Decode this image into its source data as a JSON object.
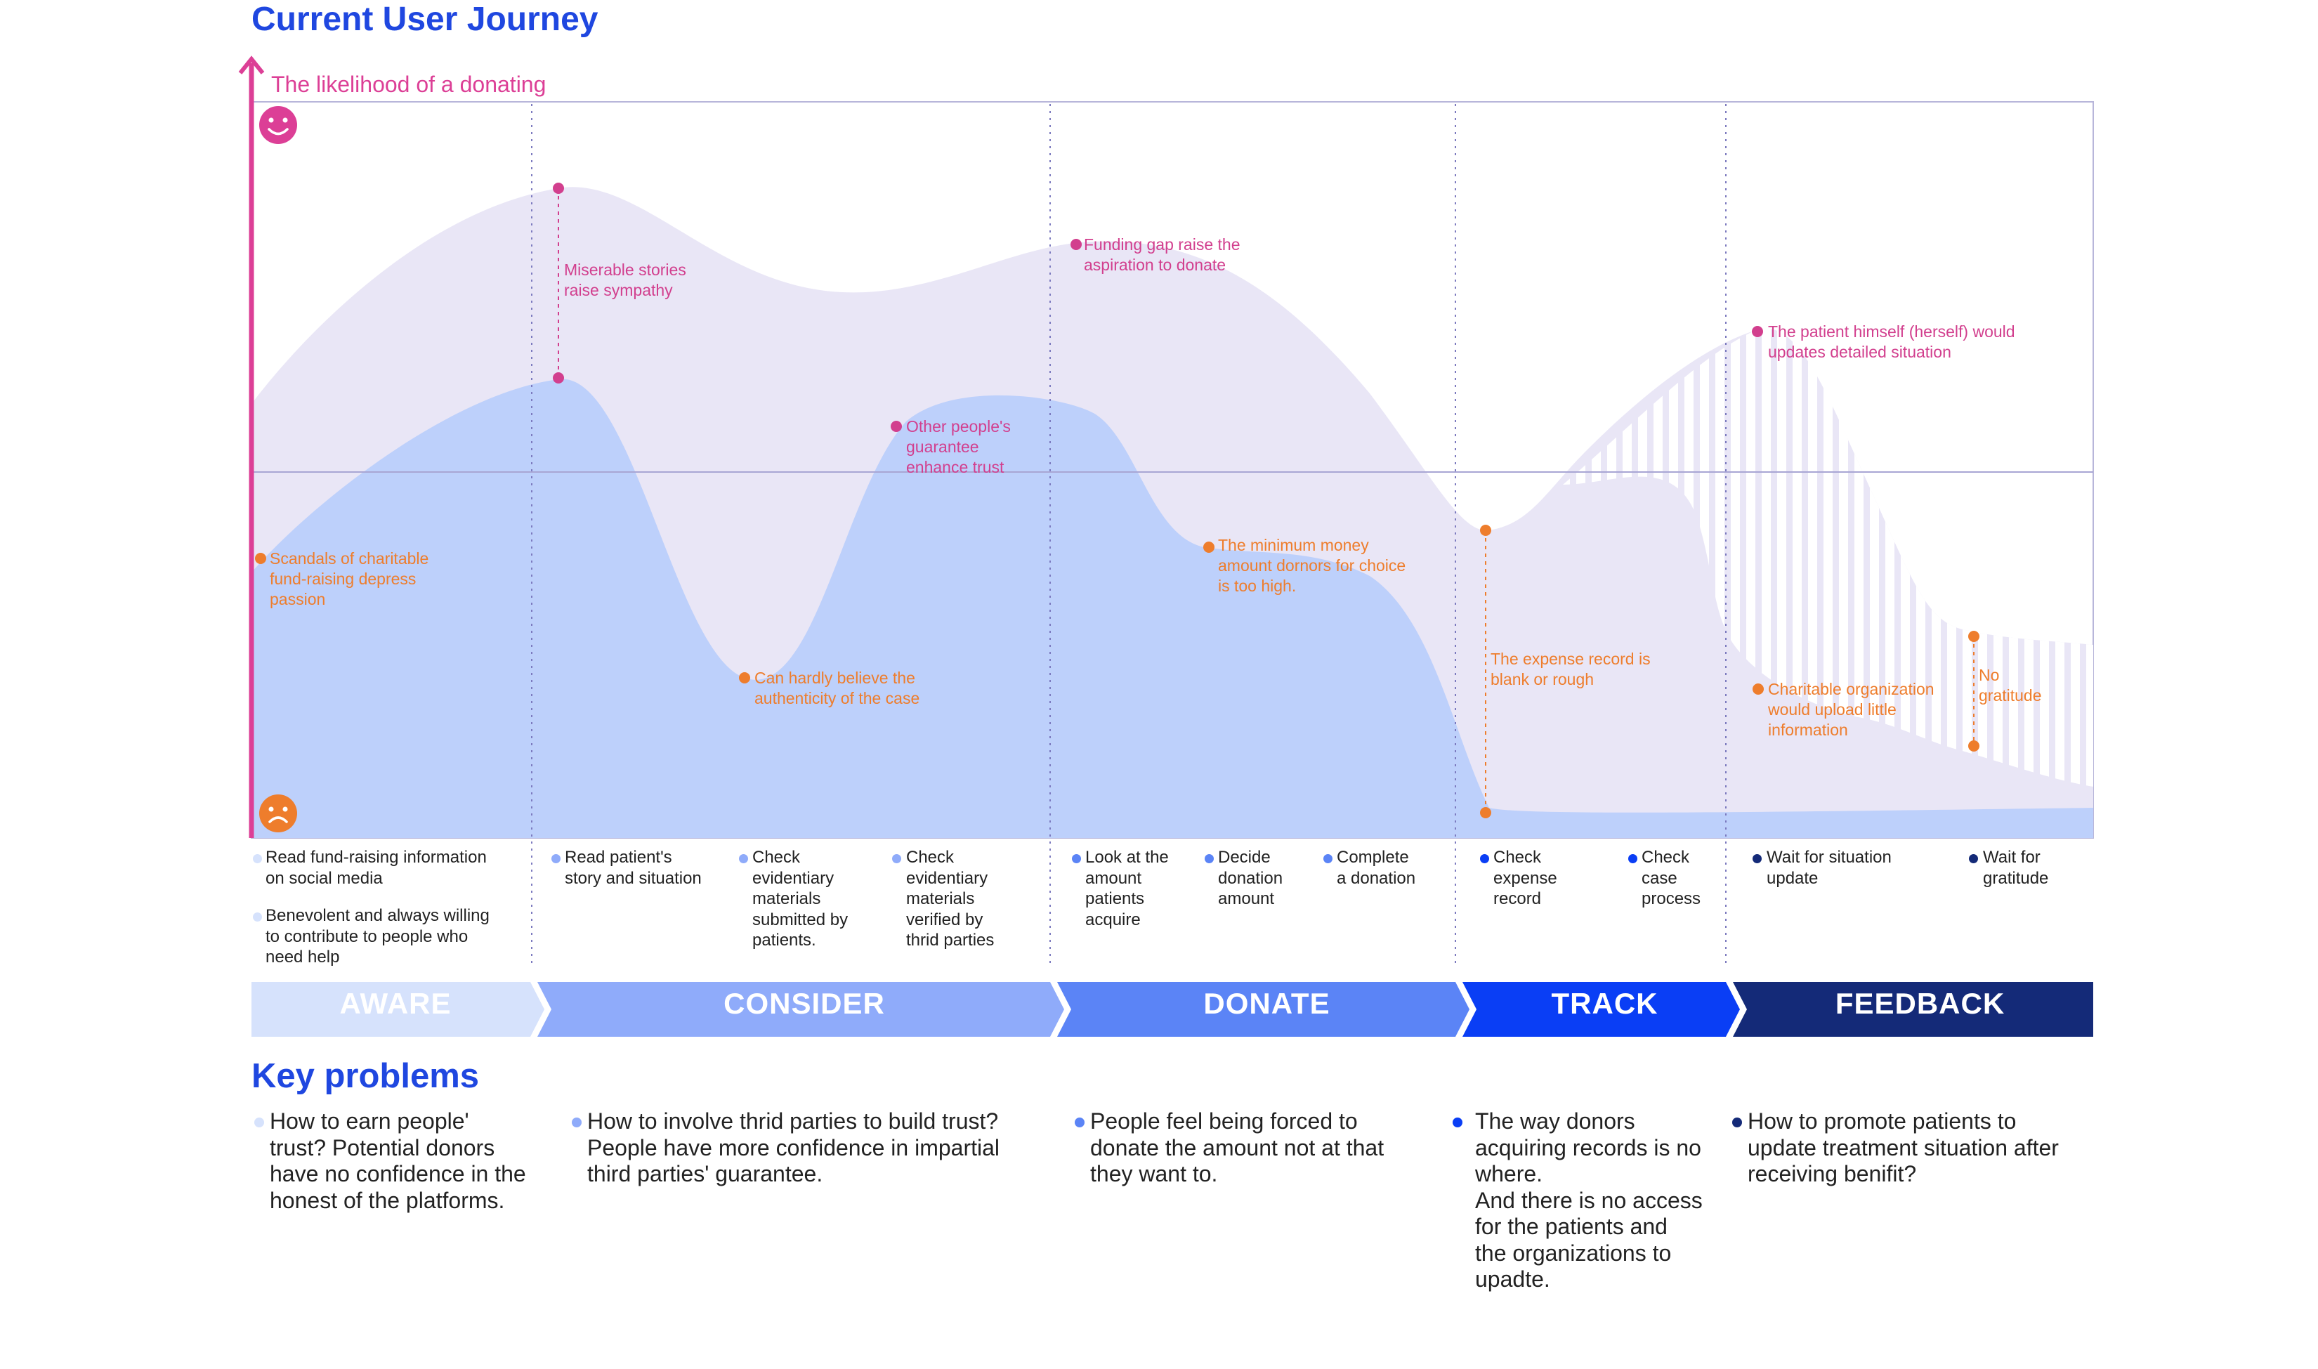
{
  "title": "Current User Journey",
  "y_axis_label": "The likelihood of a donating",
  "icons": {
    "top": "happy-face-icon",
    "bottom": "sad-face-icon"
  },
  "colors": {
    "title": "#1f47e0",
    "axis": "#dc3f96",
    "positive": "#d23f8e",
    "negative": "#ee7d2c",
    "upper_band": "#e9e6f6",
    "lower_band": "#bdd0fb"
  },
  "annotations": {
    "positive": [
      "Miserable stories\nraise sympathy",
      "Other people's\nguarantee\nenhance trust",
      "Funding gap raise the\naspiration to donate",
      "The patient himself (herself) would\nupdates detailed situation"
    ],
    "negative": [
      "Scandals of charitable\nfund-raising depress\npassion",
      "Can hardly believe the\nauthenticity of the case",
      "The minimum money\namount dornors for choice\nis too high.",
      "The expense record is\nblank or rough",
      "Charitable organization\nwould upload little\ninformation",
      "No\ngratitude"
    ]
  },
  "steps": {
    "aware": [
      "Read fund-raising information\n on social media",
      "Benevolent and always willing\nto contribute to people who\nneed help"
    ],
    "consider": [
      "Read patient's\nstory and situation",
      "Check\nevidentiary\nmaterials\nsubmitted by\npatients.",
      "Check\nevidentiary\nmaterials\nverified by\nthrid parties"
    ],
    "donate": [
      "Look at the\namount\npatients\nacquire",
      "Decide\ndonation\namount",
      "Complete\na donation"
    ],
    "track": [
      "Check\nexpense\nrecord",
      "Check\ncase\nprocess"
    ],
    "feedback": [
      "Wait for situation\nupdate",
      "Wait for\ngratitude"
    ]
  },
  "phases": [
    {
      "label": "AWARE",
      "color": "#d6e2fc",
      "text_color": "#ffffff"
    },
    {
      "label": "CONSIDER",
      "color": "#8fabfa",
      "text_color": "#ffffff"
    },
    {
      "label": "DONATE",
      "color": "#5b84f6",
      "text_color": "#ffffff"
    },
    {
      "label": "TRACK",
      "color": "#0a3ef5",
      "text_color": "#ffffff"
    },
    {
      "label": "FEEDBACK",
      "color": "#142a78",
      "text_color": "#ffffff"
    }
  ],
  "key_problems": {
    "title": "Key problems",
    "items": [
      "How to earn people'\ntrust? Potential donors\nhave no confidence in the\nhonest of the platforms.",
      "How to involve thrid parties to build trust?\nPeople have more confidence in impartial\nthird parties' guarantee.",
      "People feel being forced to\ndonate the amount not at that\nthey want to.",
      "The way donors\nacquiring records is no\nwhere.\nAnd there is no access\nfor the patients and\nthe organizations to\nupadte.",
      "How to promote patients to\nupdate treatment situation after\nreceiving benifit?"
    ]
  }
}
